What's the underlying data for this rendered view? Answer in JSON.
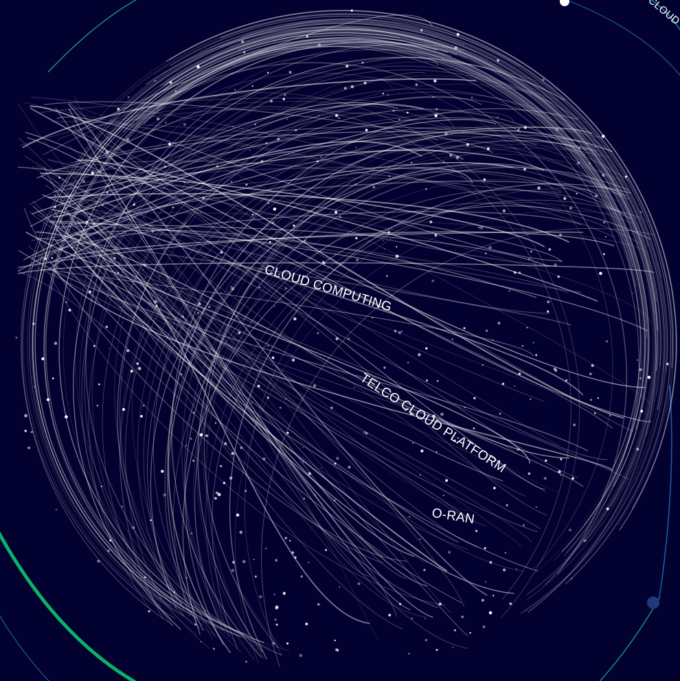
{
  "topics": [
    {
      "name": "cloud-computing-label",
      "label": "CLOUD COMPUTING"
    },
    {
      "name": "telco-cloud-platform-label",
      "label": "TELCO CLOUD PLATFORM"
    },
    {
      "name": "o-ran-label",
      "label": "O-RAN"
    },
    {
      "name": "cloud-computing-ring-label",
      "label": "CLOUD COMPUTING"
    }
  ],
  "colors": {
    "background": "#03012f",
    "strand": "#ffffff",
    "ring_green": "#0bb36a",
    "ring_blue": "#1d5aa8",
    "ring_teal": "#12a59a",
    "node_blue": "#1f3a7a"
  },
  "icons": {
    "ring_marker": "white-dot-icon",
    "ring_node": "blue-node-icon"
  }
}
